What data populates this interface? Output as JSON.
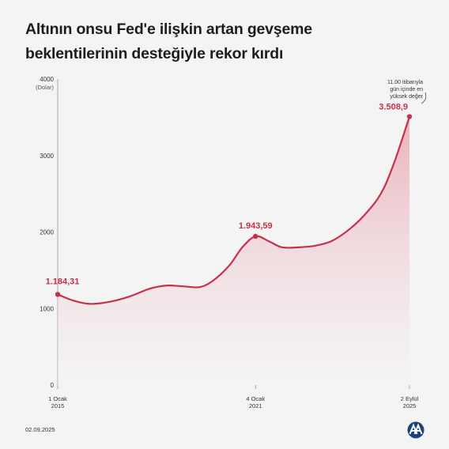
{
  "header": {
    "title_line1": "Altının onsu Fed'e ilişkin artan gevşeme",
    "title_line2": "beklentilerinin desteğiyle rekor kırdı"
  },
  "footer": {
    "date": "02.09.2025",
    "logo_icon": "aa-agency-logo-icon"
  },
  "colors": {
    "line": "#c7304a",
    "fill_top": "#e9a6b2",
    "fill_bottom": "#f4f4f4",
    "axis": "#999999",
    "text": "#1d1d1b"
  },
  "chart_data": {
    "type": "area",
    "ylabel": "(Dolar)",
    "ylim": [
      0,
      4000
    ],
    "yticks": [
      0,
      1000,
      2000,
      3000,
      4000
    ],
    "ytick_labels": [
      "0",
      "1000",
      "2000",
      "3000",
      "4000"
    ],
    "xlim": [
      2015.0,
      2025.67
    ],
    "xticks": [
      {
        "x": 2015.0,
        "line1": "1 Ocak",
        "line2": "2015"
      },
      {
        "x": 2021.0,
        "line1": "4 Ocak",
        "line2": "2021"
      },
      {
        "x": 2025.67,
        "line1": "2 Eylül",
        "line2": "2025"
      }
    ],
    "series": [
      {
        "x": [
          2015.0,
          2015.5,
          2016.0,
          2016.6,
          2017.2,
          2017.8,
          2018.3,
          2018.8,
          2019.3,
          2019.7,
          2020.2,
          2020.6,
          2021.0,
          2021.4,
          2021.8,
          2022.3,
          2022.8,
          2023.3,
          2023.8,
          2024.3,
          2024.8,
          2025.2,
          2025.67
        ],
        "y": [
          1184.31,
          1100,
          1060,
          1090,
          1160,
          1260,
          1300,
          1290,
          1280,
          1360,
          1560,
          1800,
          1943.59,
          1880,
          1800,
          1800,
          1820,
          1880,
          2020,
          2220,
          2500,
          2900,
          3508.9
        ]
      }
    ],
    "annotations": [
      {
        "x": 2015.0,
        "y": 1184.31,
        "label": "1.184,31"
      },
      {
        "x": 2021.0,
        "y": 1943.59,
        "label": "1.943,59"
      },
      {
        "x": 2025.67,
        "y": 3508.9,
        "label": "3.508,9"
      }
    ],
    "note_lines": [
      "11.00 itibarıyla",
      "gün içinde en",
      "yüksek değer"
    ]
  }
}
